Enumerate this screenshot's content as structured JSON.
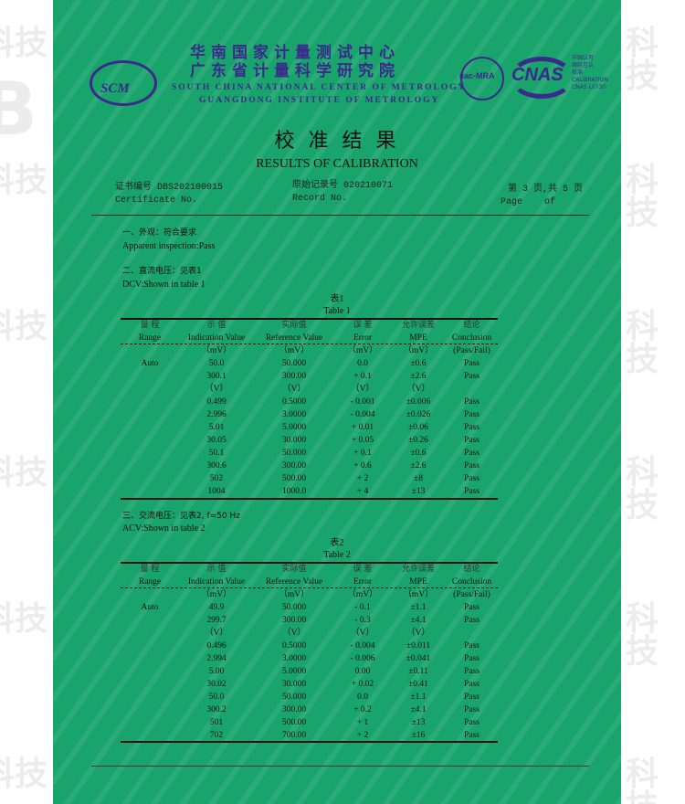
{
  "watermark": {
    "side_text": "科技",
    "side_letter": "B",
    "pattern_text": "SCM"
  },
  "header": {
    "logo": "SCM",
    "org_cn_1": "华南国家计量测试中心",
    "org_cn_2": "广东省计量科学研究院",
    "org_en_1": "SOUTH CHINA NATIONAL CENTER OF METROLOGY",
    "org_en_2": "GUANGDONG INSTITUTE OF METROLOGY",
    "ilac": "ilac-MRA",
    "cnas": "CNAS",
    "cnas_cn": [
      "中国认可",
      "国际互认",
      "校准"
    ],
    "cnas_en": [
      "CALIBRATION",
      "CNAS L0730"
    ]
  },
  "title": {
    "cn": "校 准 结 果",
    "en": "RESULTS OF CALIBRATION"
  },
  "meta": {
    "cert_label_cn": "证书编号",
    "cert_no": "DBS202100015",
    "cert_label_en": "Certificate No.",
    "record_label_cn": "原始记录号",
    "record_no": "020210071",
    "record_label_en": "Record No.",
    "page_cn": "第 3 页,共 5 页",
    "page_en": "Page    of"
  },
  "sections": {
    "s1_cn": "一、外观：符合要求",
    "s1_en": "Apparent inspection:Pass",
    "s2_cn": "二、直流电压：见表1",
    "s2_en": "DCV:Shown in table 1",
    "s3_cn": "三、交流电压：见表2, f=50 Hz",
    "s3_en": "ACV:Shown in table 2"
  },
  "columns_cn": [
    "量 程",
    "示 值",
    "实际值",
    "误 差",
    "允许误差",
    "结论"
  ],
  "columns_en": [
    "Range",
    "Indication Value",
    "Reference Value",
    "Error",
    "MPE",
    "Conclusion"
  ],
  "table1": {
    "caption_cn": "表1",
    "caption_en": "Table 1",
    "rows": [
      [
        "",
        "（mV）",
        "（mV）",
        "（mV）",
        "（mV）",
        "(Pass/Fail)"
      ],
      [
        "Auto",
        "50.0",
        "50.000",
        "0.0",
        "±0.6",
        "Pass"
      ],
      [
        "",
        "300.1",
        "300.00",
        "+ 0.1",
        "±2.6",
        "Pass"
      ],
      [
        "",
        "（V）",
        "（V）",
        "（V）",
        "（V）",
        ""
      ],
      [
        "",
        "0.499",
        "0.5000",
        "- 0.001",
        "±0.006",
        "Pass"
      ],
      [
        "",
        "2.996",
        "3.0000",
        "- 0.004",
        "±0.026",
        "Pass"
      ],
      [
        "",
        "5.01",
        "5.0000",
        "+ 0.01",
        "±0.06",
        "Pass"
      ],
      [
        "",
        "30.05",
        "30.000",
        "+ 0.05",
        "±0.26",
        "Pass"
      ],
      [
        "",
        "50.1",
        "50.000",
        "+ 0.1",
        "±0.6",
        "Pass"
      ],
      [
        "",
        "300.6",
        "300.00",
        "+ 0.6",
        "±2.6",
        "Pass"
      ],
      [
        "",
        "502",
        "500.00",
        "+ 2",
        "±8",
        "Pass"
      ],
      [
        "",
        "1004",
        "1000.0",
        "+ 4",
        "±13",
        "Pass"
      ]
    ]
  },
  "table2": {
    "caption_cn": "表2",
    "caption_en": "Table 2",
    "rows": [
      [
        "",
        "（mV）",
        "（mV）",
        "（mV）",
        "（mV）",
        "(Pass/Fail)"
      ],
      [
        "Auto",
        "49.9",
        "50.000",
        "- 0.1",
        "±1.1",
        "Pass"
      ],
      [
        "",
        "299.7",
        "300.00",
        "- 0.3",
        "±4.1",
        "Pass"
      ],
      [
        "",
        "（V）",
        "（V）",
        "（V）",
        "（V）",
        ""
      ],
      [
        "",
        "0.496",
        "0.5000",
        "- 0.004",
        "±0.011",
        "Pass"
      ],
      [
        "",
        "2.994",
        "3.0000",
        "- 0.006",
        "±0.041",
        "Pass"
      ],
      [
        "",
        "5.00",
        "5.0000",
        "0.00",
        "±0.11",
        "Pass"
      ],
      [
        "",
        "30.02",
        "30.000",
        "+ 0.02",
        "±0.41",
        "Pass"
      ],
      [
        "",
        "50.0",
        "50.000",
        "0.0",
        "±1.1",
        "Pass"
      ],
      [
        "",
        "300.2",
        "300.00",
        "+ 0.2",
        "±4.1",
        "Pass"
      ],
      [
        "",
        "501",
        "500.00",
        "+ 1",
        "±13",
        "Pass"
      ],
      [
        "",
        "702",
        "700.00",
        "+ 2",
        "±16",
        "Pass"
      ]
    ]
  },
  "colors": {
    "paper": "#19a46c",
    "ink": "#111111",
    "org_purple": "#3b2a8c"
  }
}
